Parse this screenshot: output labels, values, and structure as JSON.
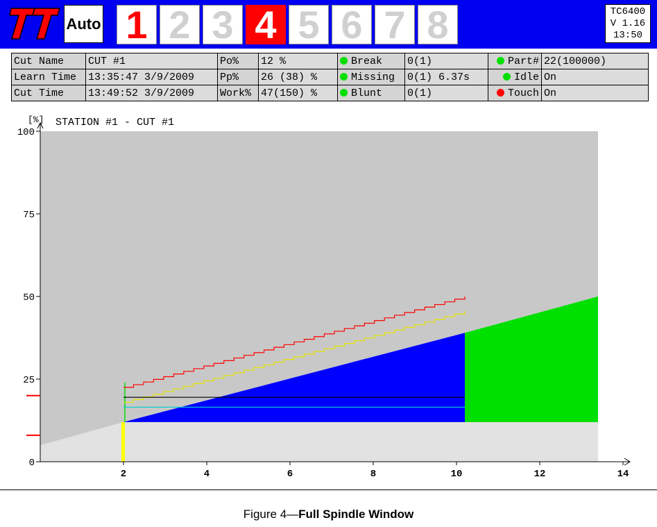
{
  "header": {
    "logo_text": "TT",
    "mode_label": "Auto",
    "stations": [
      {
        "label": "1",
        "state": "active-red-text"
      },
      {
        "label": "2",
        "state": "inactive"
      },
      {
        "label": "3",
        "state": "inactive"
      },
      {
        "label": "4",
        "state": "selected"
      },
      {
        "label": "5",
        "state": "inactive"
      },
      {
        "label": "6",
        "state": "inactive"
      },
      {
        "label": "7",
        "state": "inactive"
      },
      {
        "label": "8",
        "state": "inactive"
      }
    ],
    "version": {
      "model": "TC6400",
      "version": "V 1.16",
      "time": "13:50"
    }
  },
  "info": {
    "cut_name_label": "Cut Name",
    "cut_name_value": "CUT #1",
    "learn_time_label": "Learn Time",
    "learn_time_value": "13:35:47 3/9/2009",
    "cut_time_label": "Cut Time",
    "cut_time_value": "13:49:52 3/9/2009",
    "po_label": "Po%",
    "po_value": "12 %",
    "pp_label": "Pp%",
    "pp_value": "26 (38) %",
    "work_label": "Work%",
    "work_value": "47(150) %",
    "break_label": "Break",
    "break_value": "0(1)",
    "break_status": "#00e000",
    "missing_label": "Missing",
    "missing_value": "0(1) 6.37s",
    "missing_status": "#00e000",
    "blunt_label": "Blunt",
    "blunt_value": "0(1)",
    "blunt_status": "#00e000",
    "part_label": "Part#",
    "part_value": "22(100000)",
    "part_status": "#00e000",
    "idle_label": "Idle",
    "idle_value": "On",
    "idle_status": "#00e000",
    "touch_label": "Touch",
    "touch_value": "On",
    "touch_status": "#ff0000"
  },
  "chart_data": {
    "type": "area",
    "title": "STATION #1 - CUT #1",
    "ylabel": "[%]",
    "xlabel": "",
    "xlim": [
      0,
      14
    ],
    "ylim": [
      0,
      100
    ],
    "x_ticks": [
      "2",
      "4",
      "6",
      "8",
      "10",
      "12",
      "14"
    ],
    "y_ticks": [
      "0",
      "25",
      "50",
      "75",
      "100"
    ],
    "grid": false,
    "regions": {
      "background_area": {
        "x_start": 0,
        "x_end": 13.4,
        "color": "#c8c8c8"
      },
      "light_area": {
        "x_start": 2,
        "x_end": 13.4,
        "y_top": 12,
        "color": "#e2e2e2"
      },
      "baseline_slope_start": {
        "x": 0,
        "y": 5
      },
      "blue_wedge": {
        "x_start": 2,
        "x_end": 10.2,
        "y_bottom": 12,
        "y_top_start": 12,
        "y_top_end": 39,
        "color": "#0000ff"
      },
      "green_wedge": {
        "x_start": 10.2,
        "x_end": 13.4,
        "y_bottom": 12,
        "y_top_start": 39,
        "y_top_end": 50,
        "color": "#00e000"
      },
      "cut_start_marker": {
        "x": 2,
        "y_bottom": 0,
        "y_top": 12,
        "color": "#ffff00"
      },
      "green_vertical": {
        "x": 2,
        "y_bottom": 12,
        "y_top": 24,
        "color": "#00e000"
      }
    },
    "series": [
      {
        "color": "#ff0000",
        "x_start": 2,
        "x_end": 10.2,
        "y_start": 22.5,
        "y_end": 50
      },
      {
        "color": "#e8e800",
        "x_start": 2,
        "x_end": 10.2,
        "y_start": 18,
        "y_end": 45.5
      },
      {
        "color": "#000000",
        "x_start": 2,
        "x_end": 10.2,
        "y_start": 19.5,
        "y_end": 19.5
      },
      {
        "color": "#00d0d0",
        "x_start": 2,
        "x_end": 10.2,
        "y_start": 16.5,
        "y_end": 16.5
      }
    ],
    "side_markers": [
      {
        "y": 20,
        "color": "#ff0000"
      },
      {
        "y": 8,
        "color": "#ff0000"
      }
    ]
  },
  "caption": {
    "prefix": "Figure 4—",
    "title": "Full Spindle Window"
  }
}
